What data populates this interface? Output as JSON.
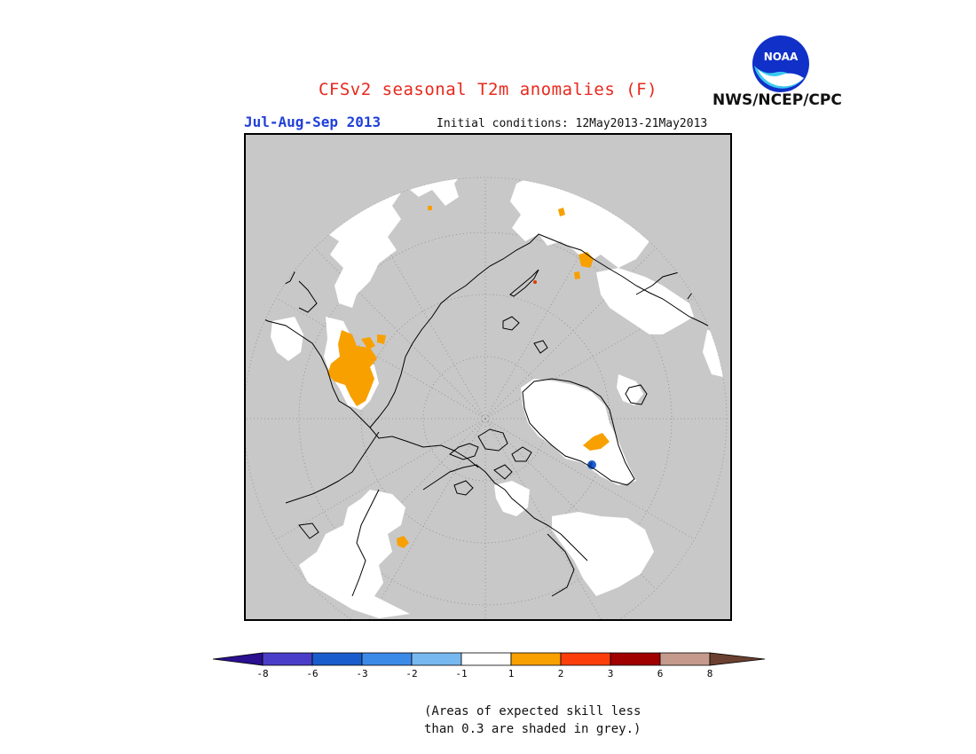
{
  "title": "CFSv2 seasonal T2m anomalies (F)",
  "period": "Jul-Aug-Sep 2013",
  "initial_conditions": "Initial conditions: 12May2013-21May2013",
  "agency": "NWS/NCEP/CPC",
  "logo_text": "NOAA",
  "map": {
    "projection": "north-polar-stereographic",
    "background_color": "#c8c8c8",
    "graticule": "dotted",
    "legend_colors_used": [
      "#ffffff",
      "#f8a000",
      "#e03c00",
      "#2060d0"
    ]
  },
  "colorbar": {
    "ticks": [
      "-8",
      "-6",
      "-3",
      "-2",
      "-1",
      "1",
      "2",
      "3",
      "6",
      "8"
    ],
    "colors": [
      "#2a0f8f",
      "#4a3ec8",
      "#1a5ccc",
      "#3c8ae8",
      "#78b8f0",
      "#ffffff",
      "#f8a000",
      "#fc3e0a",
      "#a00000",
      "#c49a8c",
      "#6b4030"
    ]
  },
  "note": {
    "line1": "(Areas of expected skill less",
    "line2": "than 0.3 are shaded in grey.)"
  }
}
